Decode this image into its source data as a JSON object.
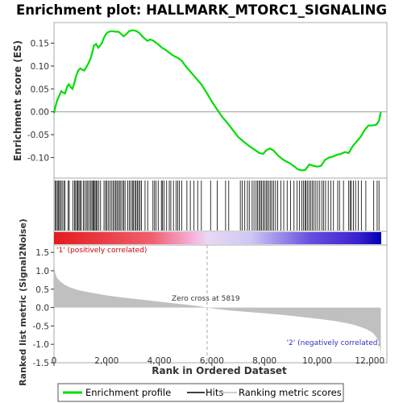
{
  "chart_data": [
    {
      "type": "line",
      "title": "Enrichment plot: HALLMARK_MTORC1_SIGNALING",
      "ylabel": "Enrichment score (ES)",
      "xlim": [
        0,
        12500
      ],
      "ylim": [
        -0.145,
        0.195
      ],
      "yticks": [
        "0.15",
        "0.10",
        "0.05",
        "0.00",
        "-0.05",
        "-0.10"
      ],
      "grid": false,
      "series": [
        {
          "name": "Enrichment profile",
          "color": "#00dd00",
          "x": [
            0,
            50,
            120,
            200,
            280,
            350,
            420,
            500,
            560,
            620,
            700,
            780,
            850,
            920,
            1000,
            1080,
            1150,
            1230,
            1300,
            1380,
            1450,
            1520,
            1600,
            1680,
            1750,
            1820,
            1900,
            1980,
            2050,
            2150,
            2250,
            2350,
            2450,
            2550,
            2650,
            2750,
            2850,
            2950,
            3050,
            3150,
            3250,
            3350,
            3450,
            3550,
            3650,
            3750,
            3850,
            3950,
            4100,
            4250,
            4400,
            4550,
            4700,
            4850,
            5000,
            5150,
            5300,
            5450,
            5600,
            5819,
            6000,
            6200,
            6400,
            6600,
            6800,
            7000,
            7200,
            7400,
            7600,
            7800,
            7950,
            8050,
            8200,
            8350,
            8500,
            8650,
            8800,
            8950,
            9100,
            9250,
            9400,
            9550,
            9700,
            9850,
            10000,
            10150,
            10300,
            10450,
            10600,
            10750,
            10900,
            11050,
            11200,
            11350,
            11500,
            11650,
            11800,
            11950,
            12100,
            12250,
            12350,
            12420
          ],
          "values": [
            -0.003,
            0.01,
            0.025,
            0.035,
            0.045,
            0.042,
            0.04,
            0.055,
            0.06,
            0.055,
            0.05,
            0.065,
            0.08,
            0.09,
            0.095,
            0.092,
            0.09,
            0.098,
            0.105,
            0.115,
            0.128,
            0.145,
            0.148,
            0.14,
            0.145,
            0.15,
            0.162,
            0.17,
            0.174,
            0.176,
            0.176,
            0.175,
            0.175,
            0.17,
            0.165,
            0.17,
            0.176,
            0.178,
            0.178,
            0.176,
            0.172,
            0.165,
            0.16,
            0.155,
            0.158,
            0.156,
            0.152,
            0.148,
            0.14,
            0.135,
            0.128,
            0.122,
            0.118,
            0.112,
            0.1,
            0.09,
            0.08,
            0.07,
            0.06,
            0.04,
            0.022,
            0.005,
            -0.012,
            -0.025,
            -0.04,
            -0.055,
            -0.065,
            -0.074,
            -0.082,
            -0.09,
            -0.092,
            -0.085,
            -0.08,
            -0.085,
            -0.095,
            -0.102,
            -0.108,
            -0.112,
            -0.118,
            -0.125,
            -0.128,
            -0.127,
            -0.115,
            -0.118,
            -0.12,
            -0.118,
            -0.105,
            -0.1,
            -0.098,
            -0.094,
            -0.092,
            -0.088,
            -0.09,
            -0.075,
            -0.065,
            -0.055,
            -0.04,
            -0.03,
            -0.03,
            -0.028,
            -0.02,
            0.0
          ]
        }
      ]
    },
    {
      "type": "scatter",
      "series": [
        {
          "name": "Hits",
          "color": "#000000",
          "x": [
            40,
            85,
            130,
            175,
            210,
            260,
            310,
            370,
            410,
            540,
            580,
            720,
            780,
            820,
            870,
            910,
            950,
            1000,
            1040,
            1120,
            1170,
            1230,
            1280,
            1330,
            1390,
            1440,
            1480,
            1520,
            1560,
            1600,
            1640,
            1700,
            1770,
            1900,
            1960,
            2000,
            2060,
            2120,
            2180,
            2240,
            2290,
            2340,
            2390,
            2440,
            2490,
            2540,
            2600,
            2650,
            2700,
            2800,
            2860,
            2920,
            2980,
            3020,
            3080,
            3120,
            3170,
            3220,
            3270,
            3320,
            3460,
            3560,
            3760,
            3820,
            3880,
            3960,
            4080,
            4120,
            4180,
            4280,
            4380,
            4440,
            4540,
            4640,
            4700,
            4760,
            4850,
            5050,
            5180,
            5320,
            5460,
            5600,
            5950,
            6200,
            6520,
            6640,
            7080,
            7150,
            7250,
            7350,
            7420,
            7530,
            7600,
            7680,
            7730,
            7790,
            7840,
            7890,
            7950,
            8000,
            8060,
            8110,
            8170,
            8230,
            8280,
            8350,
            8420,
            8500,
            8620,
            8730,
            8860,
            8990,
            9120,
            9240,
            9330,
            9420,
            9480,
            9540,
            9580,
            9640,
            9700,
            9760,
            9820,
            9880,
            9950,
            10020,
            10100,
            10180,
            10250,
            10320,
            10420,
            10520,
            10620,
            10780,
            10850,
            11000,
            11200,
            11260,
            11300,
            11380,
            11460,
            11560,
            11680,
            11850,
            12150,
            12280,
            12350
          ]
        }
      ]
    },
    {
      "type": "area",
      "ylabel": "Ranked list metric (Signal2Noise)",
      "xlabel": "Rank in Ordered Dataset",
      "xlim": [
        0,
        12500
      ],
      "ylim": [
        -1.5,
        1.7
      ],
      "xticks": [
        "0",
        "2,000",
        "4,000",
        "6,000",
        "8,000",
        "10,000",
        "12,000"
      ],
      "yticks": [
        "1.5",
        "1.0",
        "0.5",
        "0.0",
        "-0.5",
        "-1.0",
        "-1.5"
      ],
      "series": [
        {
          "name": "Ranking metric scores",
          "color": "#c0c0c0",
          "x": [
            0,
            20,
            60,
            120,
            250,
            400,
            600,
            900,
            1200,
            1600,
            2000,
            2500,
            3000,
            3500,
            4000,
            4500,
            5000,
            5500,
            5819,
            6200,
            6700,
            7200,
            7700,
            8200,
            8700,
            9200,
            9700,
            10200,
            10700,
            11100,
            11400,
            11700,
            11900,
            12100,
            12250,
            12350,
            12400,
            12420
          ],
          "values": [
            1.52,
            1.05,
            0.9,
            0.8,
            0.7,
            0.62,
            0.55,
            0.48,
            0.43,
            0.38,
            0.33,
            0.28,
            0.24,
            0.2,
            0.16,
            0.12,
            0.08,
            0.04,
            0.0,
            -0.04,
            -0.08,
            -0.11,
            -0.14,
            -0.17,
            -0.2,
            -0.24,
            -0.28,
            -0.32,
            -0.37,
            -0.42,
            -0.47,
            -0.54,
            -0.6,
            -0.68,
            -0.8,
            -0.95,
            -1.15,
            -1.42
          ]
        }
      ],
      "annotations": {
        "positive": "'1' (positively correlated)",
        "negative": "'2' (negatively correlated)",
        "zero_cross": "Zero cross at 5819",
        "zero_cross_value": 5819
      }
    }
  ],
  "legend": {
    "items": [
      "Enrichment profile",
      "Hits",
      "Ranking metric scores"
    ],
    "colors": [
      "#00dd00",
      "#000000",
      "#c0c0c0"
    ]
  },
  "colors": {
    "positive": "#dd0000",
    "negative": "#0000cc"
  }
}
